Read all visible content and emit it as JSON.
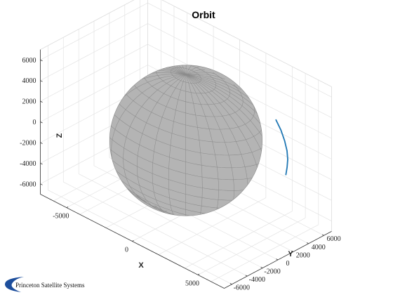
{
  "chart_data": {
    "type": "line",
    "title": "Orbit",
    "xlabel": "X",
    "ylabel": "Y",
    "zlabel": "Z",
    "x_ticks": [
      "-5000",
      "0",
      "5000"
    ],
    "y_ticks": [
      "-6000",
      "-4000",
      "-2000",
      "0",
      "2000",
      "4000",
      "6000"
    ],
    "z_ticks": [
      "-6000",
      "-4000",
      "-2000",
      "0",
      "2000",
      "4000",
      "6000"
    ],
    "xlim": [
      -7000,
      7000
    ],
    "ylim": [
      -7000,
      7000
    ],
    "zlim": [
      -7000,
      7000
    ],
    "grid": true,
    "sphere": {
      "label": "earth",
      "radius": 6378,
      "color": "#b4b4b4",
      "edge_color": "#8c8c8c"
    },
    "series": [
      {
        "color": "#1f77b4",
        "points": [
          [
            3400,
            5900,
            1900
          ],
          [
            3900,
            5700,
            1300
          ],
          [
            4300,
            5500,
            600
          ],
          [
            4600,
            5300,
            -100
          ],
          [
            4800,
            5050,
            -700
          ],
          [
            4900,
            4800,
            -1300
          ],
          [
            4950,
            4550,
            -1900
          ]
        ]
      }
    ]
  },
  "branding": {
    "company": "Princeton Satellite Systems"
  }
}
